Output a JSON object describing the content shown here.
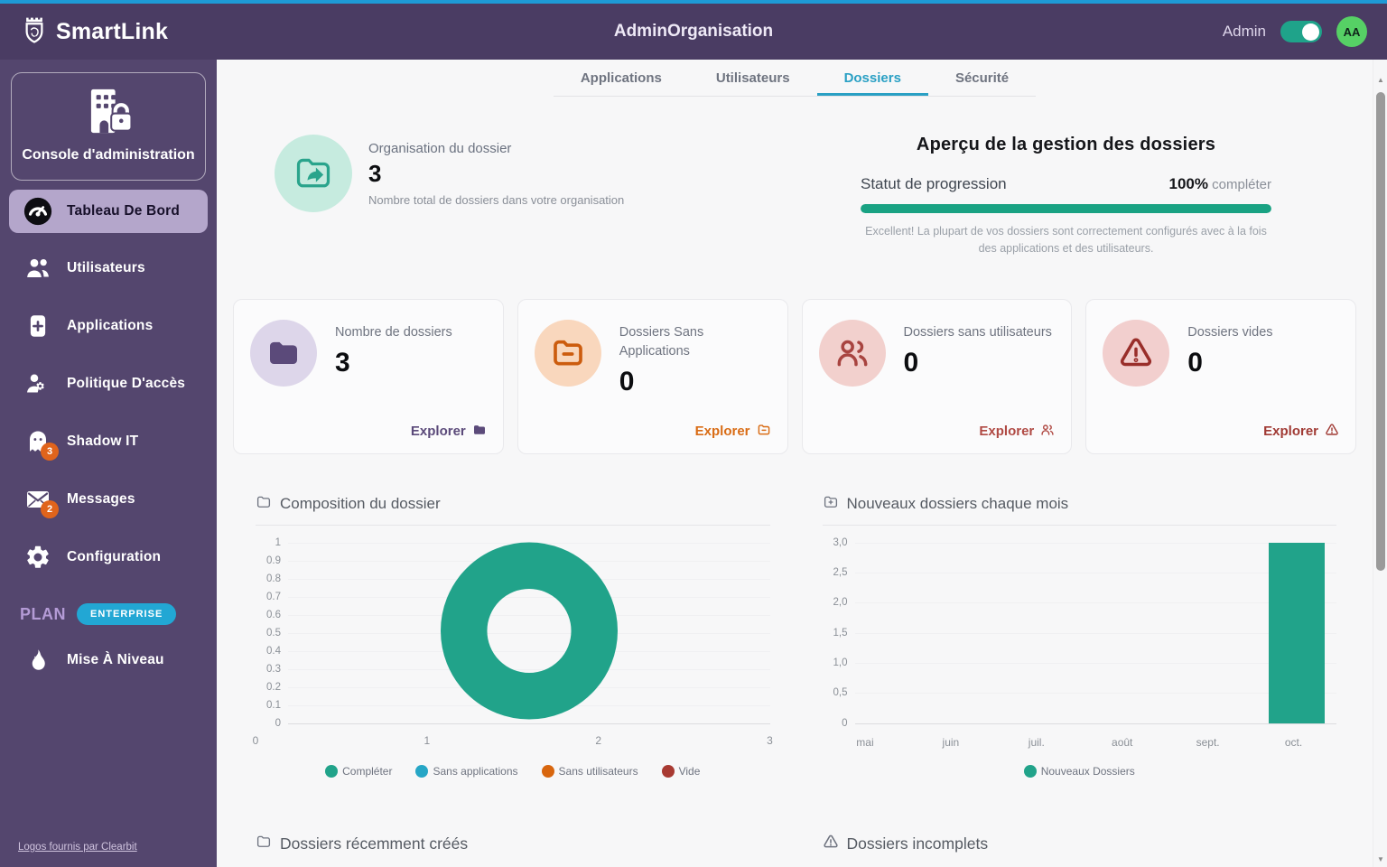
{
  "colors": {
    "accent_teal": "#21a38a",
    "accent_cyan": "#22a7d4",
    "tab_active_cyan": "#2aa0c4",
    "header_purple": "#4a3c63",
    "sidebar_purple": "#54466e",
    "badge_orange": "#e0641c",
    "avatar_green": "#56d065",
    "top_strip_blue": "#1e9ad6"
  },
  "header": {
    "brand": "SmartLink",
    "title": "AdminOrganisation",
    "user_label": "Admin",
    "toggle_on": true,
    "avatar_initials": "AA"
  },
  "sidebar": {
    "console_label": "Console d'administration",
    "items": [
      {
        "label": "Tableau De Bord",
        "icon": "dashboard",
        "active": true
      },
      {
        "label": "Utilisateurs",
        "icon": "users"
      },
      {
        "label": "Applications",
        "icon": "app-plus"
      },
      {
        "label": "Politique D'accès",
        "icon": "user-gear"
      },
      {
        "label": "Shadow IT",
        "icon": "ghost",
        "badge": "3"
      },
      {
        "label": "Messages",
        "icon": "mail",
        "badge": "2"
      },
      {
        "label": "Configuration",
        "icon": "gear"
      }
    ],
    "plan_label": "PLAN",
    "plan_badge": "ENTERPRISE",
    "upgrade_label": "Mise À Niveau",
    "footer_link": "Logos fournis par Clearbit"
  },
  "tabs": [
    {
      "label": "Applications",
      "active": false
    },
    {
      "label": "Utilisateurs",
      "active": false
    },
    {
      "label": "Dossiers",
      "active": true
    },
    {
      "label": "Sécurité",
      "active": false
    }
  ],
  "hero": {
    "title": "Organisation du dossier",
    "value": "3",
    "subtitle": "Nombre total de dossiers dans votre organisation",
    "icon": "folder-share-icon"
  },
  "overview": {
    "title": "Aperçu de la gestion des dossiers",
    "progress_label": "Statut de progression",
    "progress_value": "100%",
    "progress_suffix": " compléter",
    "progress_pct": 100,
    "caption": "Excellent! La plupart de vos dossiers sont correctement configurés avec à la fois des applications et des utilisateurs."
  },
  "stat_cards": [
    {
      "title": "Nombre de dossiers",
      "value": "3",
      "action": "Explorer",
      "icon": "folder",
      "theme": "purple"
    },
    {
      "title": "Dossiers Sans Applications",
      "value": "0",
      "action": "Explorer",
      "icon": "folder-minus",
      "theme": "orange"
    },
    {
      "title": "Dossiers sans utilisateurs",
      "value": "0",
      "action": "Explorer",
      "icon": "users-outline",
      "theme": "red"
    },
    {
      "title": "Dossiers vides",
      "value": "0",
      "action": "Explorer",
      "icon": "warning",
      "theme": "darkred"
    }
  ],
  "chart_data": [
    {
      "type": "pie",
      "title": "Composition du dossier",
      "title_icon": "folder-outline",
      "labels": [
        "Compléter",
        "Sans applications",
        "Sans utilisateurs",
        "Vide"
      ],
      "values": [
        3,
        0,
        0,
        0
      ],
      "colors": [
        "#21a38a",
        "#26a6c6",
        "#d8660e",
        "#a83a32"
      ],
      "legend_position": "bottom",
      "grid": true,
      "y_ticks": [
        "1",
        "0.9",
        "0.8",
        "0.7",
        "0.6",
        "0.5",
        "0.4",
        "0.3",
        "0.2",
        "0.1",
        "0"
      ],
      "x_ticks": [
        "0",
        "1",
        "2",
        "3"
      ]
    },
    {
      "type": "bar",
      "title": "Nouveaux dossiers chaque mois",
      "title_icon": "folder-plus",
      "categories": [
        "mai",
        "juin",
        "juil.",
        "août",
        "sept.",
        "oct."
      ],
      "series": [
        {
          "name": "Nouveaux Dossiers",
          "values": [
            0,
            0,
            0,
            0,
            0,
            3
          ],
          "color": "#21a38a"
        }
      ],
      "ylim": [
        0,
        3
      ],
      "y_ticks": [
        "3,0",
        "2,5",
        "2,0",
        "1,5",
        "1,0",
        "0,5",
        "0"
      ],
      "grid": true,
      "legend_position": "bottom"
    }
  ],
  "bottom_sections": [
    {
      "title": "Dossiers récemment créés",
      "icon": "folder-outline"
    },
    {
      "title": "Dossiers incomplets",
      "icon": "warning"
    }
  ]
}
